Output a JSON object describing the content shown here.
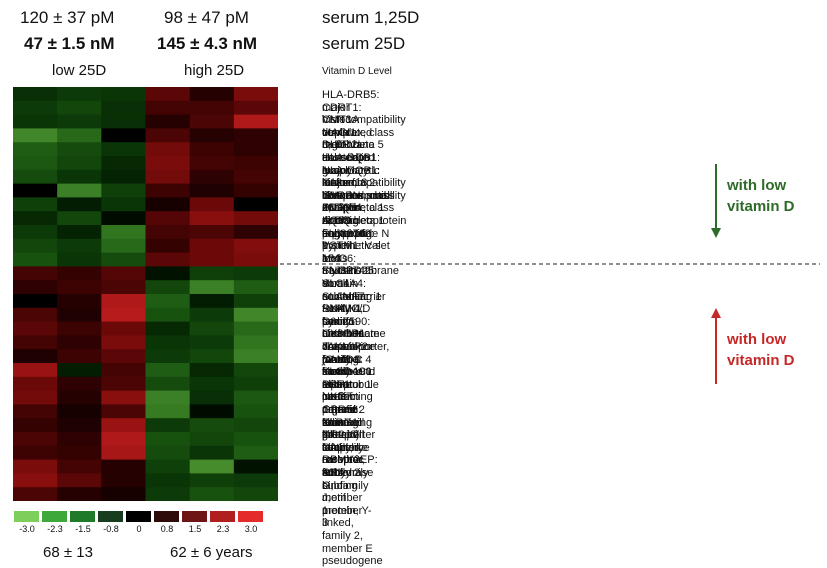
{
  "header": {
    "low": {
      "serum_1_25D": "120 ± 37 pM",
      "serum_25D": "47 ±  1.5 nM",
      "group_label": "low 25D"
    },
    "high": {
      "serum_1_25D": "98 ± 47 pM",
      "serum_25D": "145 ± 4.3 nM",
      "group_label": "high 25D"
    },
    "row1_label": "serum 1,25D",
    "row2_label": "serum 25D",
    "vitamin_level_label": "Vitamin D Level"
  },
  "annotations": {
    "top": {
      "line1": "with low",
      "line2": "vitamin D",
      "direction": "down",
      "color": "#2e6b28"
    },
    "bottom": {
      "line1": "with low",
      "line2": "vitamin D",
      "direction": "up",
      "color": "#c62828"
    }
  },
  "ages": {
    "low": "68 ± 13",
    "high": "62 ± 6 years"
  },
  "chart_data": {
    "type": "heatmap",
    "columns": 6,
    "column_groups": [
      "low 25D",
      "high 25D"
    ],
    "rows": [
      "HLA-DRB5: major histocompatibility complex, class II, DR beta 5",
      "CDRT1: CMT1A duplicated region transcript 1",
      "VNN3: vanin 3",
      "MAGI1: membrane associated guanylate kinase, WW and PDZ domain containing 1",
      "DLEU2L: deleted in lymphocytic leukemia 2-like",
      "HLA-DQB1: major histocompatibility complex, class II, DQ beta 1",
      "HLA-DQB1: major histocompatibility complex, class II, DQ beta 1",
      "C13orf18: chromosome 13 open reading frame 18",
      "SNRPN: small nuclear ribonucleoprotein polypeptide N",
      "ZNF154: zinc finger protein 154",
      "AQP9: aquaporin 9",
      "FLJ32742: hypothetical locus FLJ32742",
      "VSTM1: V-set and transmembrane domain containing 1",
      "MYO6: myosin VI",
      "SNORD25: small nucleolar RNA, C/D box 25",
      "SLC4A4: solute carrier family 4, sodium bicarbonate cotransporter, member 4",
      "SLAMF7: SLAM family member 7",
      "PYHIN1: pyrin and HIN domain family, member 1",
      "C6orf190: chromosome 6 open reading frame 190",
      "CX3CR1: chemokine (C-X3-C motif) receptor 1",
      "JAKMIP2: janus kinase and microtubule interacting protein 2",
      "SAMD3: sterile alpha motif domain containing 3",
      "SLCO4C1: solute carrier organic anion transporter family, member 4C1",
      "PRF1: perforin 1 (pore forming protein)",
      "NKG7: natural killer cell group 7 sequence",
      "GPR56: G protein-coupled receptor 56",
      "KLRG1: killer cell lectin-like receptor subfamily G, member 1",
      "OR2J3: olfactory receptor, family 2, subfamily J, member 3",
      "CA1: carbonic anhydrase I",
      "RBMY2EP: RNA binding motif protein, Y-linked, family 2, member E pseudogene"
    ],
    "values": [
      [
        -0.8,
        -1.0,
        -0.9,
        1.2,
        0.5,
        1.6
      ],
      [
        -1.0,
        -1.2,
        -0.8,
        0.9,
        0.9,
        1.2
      ],
      [
        -0.9,
        -1.0,
        -0.8,
        0.5,
        1.0,
        2.3
      ],
      [
        -2.3,
        -1.8,
        0.0,
        1.0,
        0.5,
        0.6
      ],
      [
        -1.6,
        -1.3,
        -0.9,
        1.5,
        0.8,
        0.6
      ],
      [
        -1.5,
        -1.2,
        -0.7,
        1.6,
        0.9,
        0.8
      ],
      [
        -1.3,
        -0.9,
        -0.6,
        1.5,
        0.6,
        0.9
      ],
      [
        0.0,
        -2.2,
        -1.1,
        0.8,
        0.4,
        0.7
      ],
      [
        -1.1,
        -0.5,
        -0.9,
        0.3,
        1.4,
        0.0
      ],
      [
        -0.7,
        -1.2,
        -0.2,
        1.1,
        1.8,
        1.5
      ],
      [
        -1.0,
        -0.6,
        -2.0,
        0.9,
        1.0,
        0.6
      ],
      [
        -1.2,
        -1.0,
        -1.8,
        0.7,
        1.4,
        1.7
      ],
      [
        -1.4,
        -0.9,
        -1.3,
        1.2,
        1.4,
        1.6
      ],
      [
        0.9,
        0.7,
        1.1,
        -0.3,
        -1.1,
        -1.0
      ],
      [
        0.6,
        0.8,
        1.0,
        -1.2,
        -2.2,
        -1.6
      ],
      [
        0.0,
        0.5,
        2.3,
        -1.6,
        -0.5,
        -1.1
      ],
      [
        1.0,
        0.4,
        2.4,
        -1.4,
        -1.0,
        -2.3
      ],
      [
        1.2,
        0.8,
        1.4,
        -0.7,
        -1.2,
        -1.8
      ],
      [
        0.9,
        0.6,
        1.6,
        -0.9,
        -1.0,
        -2.0
      ],
      [
        0.4,
        0.8,
        1.2,
        -1.0,
        -1.2,
        -2.2
      ],
      [
        2.0,
        -0.5,
        0.9,
        -1.6,
        -0.7,
        -1.2
      ],
      [
        1.4,
        0.6,
        1.0,
        -1.3,
        -0.9,
        -1.1
      ],
      [
        1.5,
        0.5,
        1.8,
        -2.2,
        -0.8,
        -1.5
      ],
      [
        0.9,
        0.3,
        1.0,
        -2.1,
        -0.2,
        -1.4
      ],
      [
        0.7,
        0.4,
        2.0,
        -1.0,
        -1.3,
        -1.2
      ],
      [
        1.0,
        0.6,
        2.3,
        -1.4,
        -1.2,
        -1.4
      ],
      [
        0.8,
        0.7,
        2.2,
        -1.3,
        -0.9,
        -1.6
      ],
      [
        1.6,
        0.9,
        0.5,
        -1.1,
        -2.4,
        -0.3
      ],
      [
        1.8,
        1.2,
        0.5,
        -0.9,
        -1.1,
        -1.0
      ],
      [
        1.0,
        0.5,
        0.3,
        -1.0,
        -1.4,
        -1.2
      ]
    ],
    "color_scale": {
      "ticks": [
        "-3.0",
        "-2.3",
        "-1.5",
        "-0.8",
        "0",
        "0.8",
        "1.5",
        "2.3",
        "3.0"
      ],
      "colors": [
        "#7ccf5b",
        "#3ea83a",
        "#1f7a2a",
        "#173d1e",
        "#000000",
        "#2e0b0b",
        "#6e1515",
        "#b01e1e",
        "#e52a2a"
      ]
    }
  }
}
